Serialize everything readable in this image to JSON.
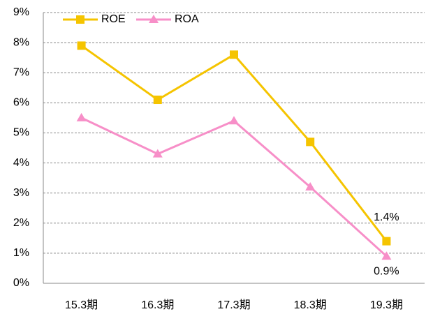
{
  "chart_data": {
    "type": "line",
    "categories": [
      "15.3期",
      "16.3期",
      "17.3期",
      "18.3期",
      "19.3期"
    ],
    "series": [
      {
        "name": "ROE",
        "color": "#f5c400",
        "marker": "square",
        "values": [
          7.9,
          6.1,
          7.6,
          4.7,
          1.4
        ],
        "value_labels": [
          null,
          null,
          null,
          null,
          "1.4%"
        ]
      },
      {
        "name": "ROA",
        "color": "#f78fc8",
        "marker": "triangle",
        "values": [
          5.5,
          4.3,
          5.4,
          3.2,
          0.9
        ],
        "value_labels": [
          null,
          null,
          null,
          null,
          "0.9%"
        ]
      }
    ],
    "ylim": [
      0,
      9
    ],
    "yticks": [
      {
        "value": 0,
        "label": "0%"
      },
      {
        "value": 1,
        "label": "1%"
      },
      {
        "value": 2,
        "label": "2%"
      },
      {
        "value": 3,
        "label": "3%"
      },
      {
        "value": 4,
        "label": "4%"
      },
      {
        "value": 5,
        "label": "5%"
      },
      {
        "value": 6,
        "label": "6%"
      },
      {
        "value": 7,
        "label": "7%"
      },
      {
        "value": 8,
        "label": "8%"
      },
      {
        "value": 9,
        "label": "9%"
      }
    ],
    "grid": true,
    "legend": "top-left"
  }
}
